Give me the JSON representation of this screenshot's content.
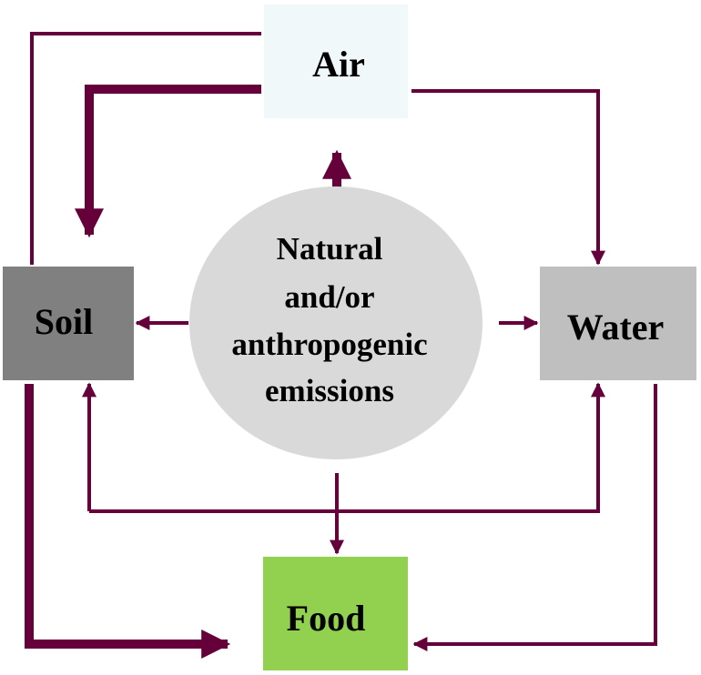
{
  "nodes": [
    {
      "label": "Air"
    },
    {
      "label": "Soil"
    },
    {
      "label": "Water"
    },
    {
      "label": "Food"
    }
  ],
  "center": {
    "lines": [
      "Natural",
      "and/or",
      "anthropogenic",
      "emissions"
    ]
  }
}
